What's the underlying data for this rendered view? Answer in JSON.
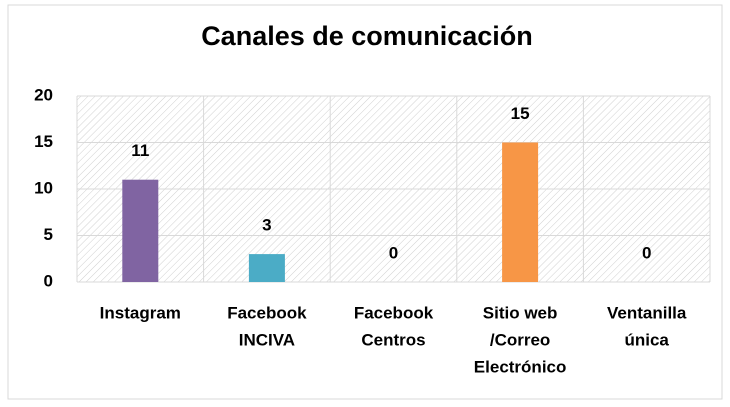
{
  "chart_data": {
    "type": "bar",
    "title": "Canales de comunicación",
    "categories": [
      [
        "Instagram"
      ],
      [
        "Facebook",
        "INCIVA"
      ],
      [
        "Facebook",
        "Centros"
      ],
      [
        "Sitio web",
        "/Correo",
        "Electrónico"
      ],
      [
        "Ventanilla",
        "única"
      ]
    ],
    "values": [
      11,
      3,
      0,
      15,
      0
    ],
    "colors": [
      "#8064a2",
      "#4bacc6",
      "#9bbb59",
      "#f79646",
      "#c0504d"
    ],
    "ylim": [
      0,
      20
    ],
    "yticks": [
      0,
      5,
      10,
      15,
      20
    ],
    "grid": true
  }
}
